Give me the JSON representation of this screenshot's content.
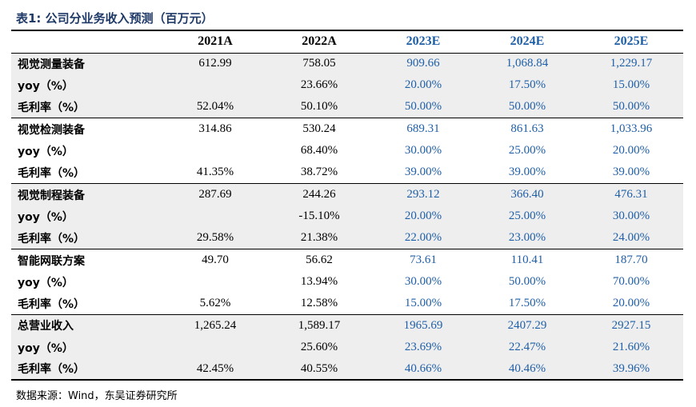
{
  "title": "表1:  公司分业务收入预测（百万元）",
  "columns": [
    "",
    "2021A",
    "2022A",
    "2023E",
    "2024E",
    "2025E"
  ],
  "rows": [
    {
      "label": "视觉测量装备",
      "values": [
        "612.99",
        "758.05",
        "909.66",
        "1,068.84",
        "1,229.17"
      ]
    },
    {
      "label": "yoy（%）",
      "values": [
        "",
        "23.66%",
        "20.00%",
        "17.50%",
        "15.00%"
      ]
    },
    {
      "label": "毛利率（%）",
      "values": [
        "52.04%",
        "50.10%",
        "50.00%",
        "50.00%",
        "50.00%"
      ]
    },
    {
      "label": "视觉检测装备",
      "values": [
        "314.86",
        "530.24",
        "689.31",
        "861.63",
        "1,033.96"
      ]
    },
    {
      "label": "yoy（%）",
      "values": [
        "",
        "68.40%",
        "30.00%",
        "25.00%",
        "20.00%"
      ]
    },
    {
      "label": "毛利率（%）",
      "values": [
        "41.35%",
        "38.72%",
        "39.00%",
        "39.00%",
        "39.00%"
      ]
    },
    {
      "label": "视觉制程装备",
      "values": [
        "287.69",
        "244.26",
        "293.12",
        "366.40",
        "476.31"
      ]
    },
    {
      "label": "yoy（%）",
      "values": [
        "",
        "-15.10%",
        "20.00%",
        "25.00%",
        "30.00%"
      ]
    },
    {
      "label": "毛利率（%）",
      "values": [
        "29.58%",
        "21.38%",
        "22.00%",
        "23.00%",
        "24.00%"
      ]
    },
    {
      "label": "智能网联方案",
      "values": [
        "49.70",
        "56.62",
        "73.61",
        "110.41",
        "187.70"
      ]
    },
    {
      "label": "yoy（%）",
      "values": [
        "",
        "13.94%",
        "30.00%",
        "50.00%",
        "70.00%"
      ]
    },
    {
      "label": "毛利率（%）",
      "values": [
        "5.62%",
        "12.58%",
        "15.00%",
        "17.50%",
        "20.00%"
      ]
    },
    {
      "label": "总营业收入",
      "values": [
        "1,265.24",
        "1,589.17",
        "1965.69",
        "2407.29",
        "2927.15"
      ]
    },
    {
      "label": "yoy（%）",
      "values": [
        "",
        "25.60%",
        "23.69%",
        "22.47%",
        "21.60%"
      ]
    },
    {
      "label": "毛利率（%）",
      "values": [
        "42.45%",
        "40.55%",
        "40.66%",
        "40.46%",
        "39.96%"
      ]
    }
  ],
  "source": "数据来源：Wind，东吴证券研究所",
  "colors": {
    "title": "#1f3a68",
    "estimate": "#1f5fa8",
    "shade": "#eeeeee"
  }
}
